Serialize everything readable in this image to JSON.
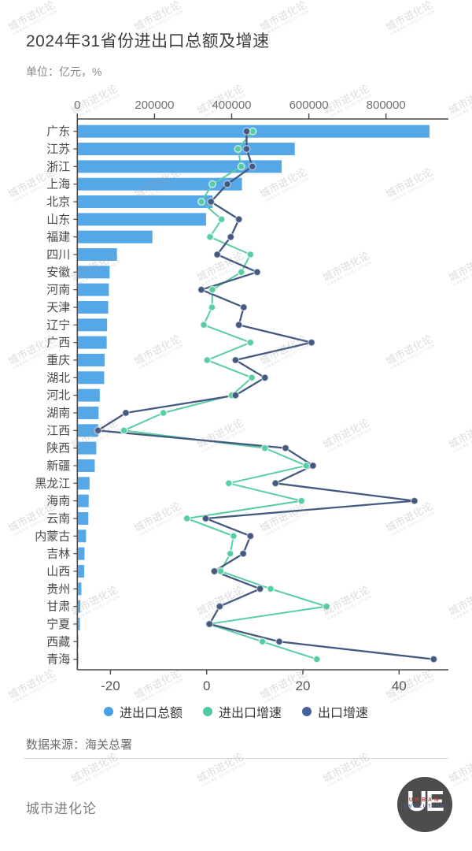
{
  "page": {
    "title": "2024年31省份进出口总额及增速",
    "subtitle": "单位：亿元，%",
    "source": "数据来源：海关总署",
    "brand": "城市进化论",
    "logo": {
      "monogram": "UE",
      "line1": "URBAN",
      "line2": "EVOLUTION"
    },
    "watermark": {
      "line1": "城市进化论",
      "line2": "URBAN EVOLUTION"
    }
  },
  "legend": [
    {
      "label": "进出口总额",
      "color": "#46a0e6",
      "type": "bar"
    },
    {
      "label": "进出口增速",
      "color": "#53caa0",
      "type": "line"
    },
    {
      "label": "出口增速",
      "color": "#47619e",
      "type": "line"
    }
  ],
  "chart_data": {
    "type": "bar",
    "orientation": "horizontal",
    "title": "2024年31省份进出口总额及增速",
    "xlabel": "",
    "ylabel": "",
    "grid": false,
    "legend_position": "bottom",
    "categories": [
      "广东",
      "江苏",
      "浙江",
      "上海",
      "北京",
      "山东",
      "福建",
      "四川",
      "安徽",
      "河南",
      "天津",
      "辽宁",
      "广西",
      "重庆",
      "湖北",
      "河北",
      "湖南",
      "江西",
      "陕西",
      "新疆",
      "黑龙江",
      "海南",
      "云南",
      "内蒙古",
      "吉林",
      "山西",
      "贵州",
      "甘肃",
      "宁夏",
      "西藏",
      "青海"
    ],
    "series": [
      {
        "name": "进出口总额",
        "type": "bar",
        "axis": "top",
        "unit": "亿元",
        "color": "#55a8e8",
        "values": [
          911000,
          562000,
          528000,
          425000,
          349000,
          332000,
          193000,
          101000,
          82000,
          80000,
          78500,
          75500,
          74500,
          69000,
          68000,
          56500,
          53500,
          52500,
          47500,
          43500,
          30000,
          27800,
          27000,
          21000,
          17000,
          16200,
          8800,
          6100,
          5000,
          1300,
          400
        ]
      },
      {
        "name": "进出口增速",
        "type": "line",
        "axis": "bottom",
        "unit": "%",
        "color": "#57cda3",
        "values": [
          9.6,
          6.5,
          7.2,
          1.2,
          -1.1,
          3.1,
          0.7,
          9.1,
          7.2,
          1.2,
          1.1,
          -0.6,
          9.1,
          0.1,
          9.4,
          5.2,
          -9.0,
          -17.2,
          12.1,
          20.7,
          4.6,
          19.7,
          -4.1,
          5.6,
          4.9,
          2.9,
          13.3,
          24.9,
          0.4,
          11.6,
          22.9
        ]
      },
      {
        "name": "出口增速",
        "type": "line",
        "axis": "bottom",
        "unit": "%",
        "color": "#44597f",
        "values": [
          8.3,
          8.3,
          9.5,
          4.3,
          0.9,
          6.7,
          5.0,
          2.2,
          10.5,
          -1.1,
          7.7,
          6.7,
          21.8,
          6.0,
          12.1,
          6.0,
          -16.8,
          -22.6,
          16.4,
          22.1,
          14.3,
          43.2,
          -0.2,
          9.1,
          7.6,
          1.6,
          11.1,
          2.7,
          0.6,
          15.1,
          47.2
        ]
      }
    ],
    "top_axis": {
      "ticks": [
        "0",
        "200000",
        "400000",
        "600000",
        "800000"
      ],
      "tick_values": [
        0,
        200000,
        400000,
        600000,
        800000
      ],
      "max": 960000
    },
    "bottom_axis": {
      "ticks": [
        "-20",
        "0",
        "20",
        "40"
      ],
      "tick_values": [
        -20,
        0,
        20,
        40
      ],
      "min": -26.9,
      "max": 50.3
    }
  }
}
